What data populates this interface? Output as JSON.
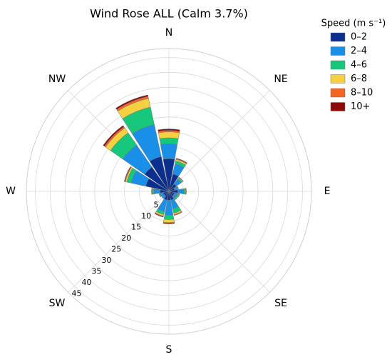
{
  "chart_data": {
    "type": "windrose",
    "title": "Wind Rose ALL  (Calm 3.7%)",
    "legend_title": "Speed (m s⁻¹)",
    "legend": "upper right",
    "categories": [
      "N",
      null,
      "NE",
      null,
      "E",
      null,
      "SE",
      null,
      "S",
      null,
      "SW",
      null,
      "W",
      null,
      "NW",
      null
    ],
    "rlim": [
      0,
      48
    ],
    "rticks": [
      5,
      10,
      15,
      20,
      25,
      30,
      35,
      40,
      45
    ],
    "grid": true,
    "series": [
      {
        "name": "0–2",
        "color": "#0b2f8e",
        "values": [
          11,
          6,
          3,
          2,
          3,
          2,
          2,
          3,
          3,
          3,
          2,
          2,
          3,
          8,
          10,
          12
        ]
      },
      {
        "name": "2–4",
        "color": "#1a8fe8",
        "values": [
          5,
          3.5,
          2,
          1,
          2,
          1,
          1,
          3,
          5,
          4,
          1,
          1,
          2,
          5,
          9,
          11
        ]
      },
      {
        "name": "4–6",
        "color": "#17c77b",
        "values": [
          2,
          1,
          0.5,
          0.3,
          0.5,
          0.5,
          0.5,
          1.5,
          1.5,
          1,
          0,
          0.3,
          0.5,
          1.5,
          5,
          6
        ]
      },
      {
        "name": "6–8",
        "color": "#f5d142",
        "values": [
          2,
          0.5,
          0.2,
          0,
          0.2,
          0.2,
          0,
          0.5,
          1,
          0.5,
          0,
          0.1,
          0.2,
          0.5,
          2,
          3
        ]
      },
      {
        "name": "8–10",
        "color": "#f26522",
        "values": [
          0.5,
          0.2,
          0.1,
          0,
          0.1,
          0,
          0,
          0.2,
          0.3,
          0.2,
          0,
          0,
          0.1,
          0.2,
          0.5,
          0.7
        ]
      },
      {
        "name": "10+",
        "color": "#8b0a0a",
        "values": [
          0.5,
          0.2,
          0.1,
          0,
          0.1,
          0,
          0,
          0.1,
          0.2,
          0.2,
          0,
          0,
          0.1,
          0.2,
          0.5,
          0.5
        ]
      }
    ]
  }
}
